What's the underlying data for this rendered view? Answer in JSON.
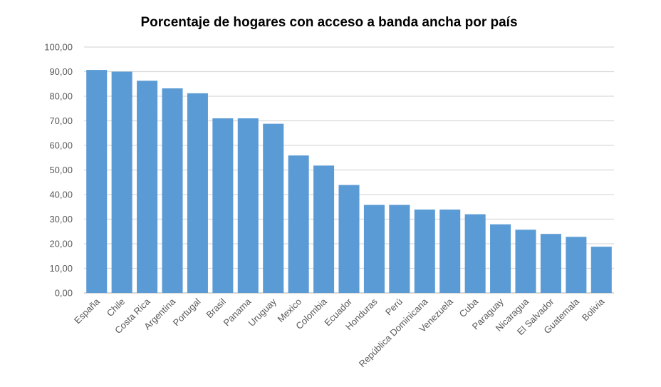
{
  "chart_data": {
    "type": "bar",
    "title": "Porcentaje de hogares con acceso a banda ancha por país",
    "xlabel": "",
    "ylabel": "",
    "ylim": [
      0,
      100
    ],
    "yticks": [
      "0,00",
      "10,00",
      "20,00",
      "30,00",
      "40,00",
      "50,00",
      "60,00",
      "70,00",
      "80,00",
      "90,00",
      "100,00"
    ],
    "grid": true,
    "bar_color": "#5B9BD5",
    "categories": [
      "España",
      "Chile",
      "Costa Rica",
      "Argentina",
      "Portugal",
      "Brasil",
      "Panama",
      "Uruguay",
      "Mexico",
      "Colombia",
      "Ecuador",
      "Honduras",
      "Perú",
      "República Dominicana",
      "Venezuela",
      "Cuba",
      "Paraguay",
      "Nicaragua",
      "El Salvador",
      "Guatemala",
      "Bolivia"
    ],
    "values": [
      90.7,
      90.0,
      86.3,
      83.2,
      81.2,
      71.0,
      71.0,
      68.8,
      55.9,
      51.8,
      43.9,
      35.8,
      35.8,
      33.9,
      33.9,
      32.0,
      27.9,
      25.7,
      24.0,
      22.8,
      18.8
    ]
  }
}
